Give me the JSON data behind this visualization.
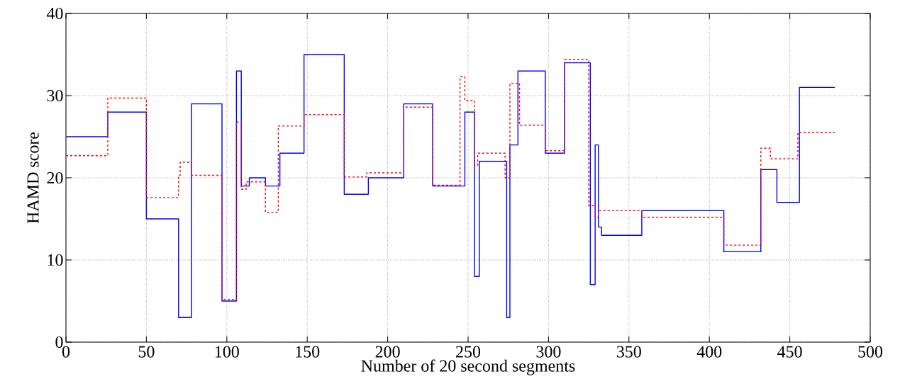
{
  "chart_data": {
    "type": "step",
    "xlabel": "Number of 20 second segments",
    "ylabel": "HAMD score",
    "xlim": [
      0,
      500
    ],
    "ylim": [
      0,
      40
    ],
    "xticks": [
      0,
      50,
      100,
      150,
      200,
      250,
      300,
      350,
      400,
      450,
      500
    ],
    "yticks": [
      0,
      10,
      20,
      30,
      40
    ],
    "grid": true,
    "marker": "none",
    "series": [
      {
        "color": "#0000ff",
        "line_style": "solid",
        "x": [
          0,
          26,
          50,
          70,
          78,
          97,
          106,
          109,
          114,
          124,
          133,
          148,
          173,
          188,
          210,
          228,
          248,
          254,
          257,
          274,
          276,
          281,
          298,
          310,
          326,
          329,
          331,
          333,
          358,
          409,
          432,
          442,
          456,
          478
        ],
        "values": [
          25,
          28,
          15,
          3,
          29,
          5,
          33,
          19,
          20,
          19,
          23,
          35,
          18,
          20,
          29,
          19,
          28,
          8,
          22,
          3,
          24,
          33,
          23,
          34,
          7,
          24,
          14,
          13,
          16,
          11,
          21,
          17,
          31,
          31
        ]
      },
      {
        "color": "#ff0000",
        "line_style": "dashed",
        "x": [
          0,
          26,
          50,
          70,
          71,
          78,
          97,
          106,
          109,
          112,
          124,
          132,
          148,
          173,
          187,
          210,
          228,
          245,
          248,
          254,
          256,
          273,
          276,
          282,
          298,
          310,
          325,
          329,
          331,
          358,
          409,
          432,
          438,
          455,
          478
        ],
        "values": [
          22.7,
          29.7,
          17.6,
          20.3,
          21.9,
          20.3,
          5.2,
          26.8,
          18.6,
          19.5,
          15.8,
          26.3,
          27.7,
          20.1,
          20.6,
          28.6,
          19.1,
          32.3,
          29.4,
          21.5,
          23,
          20,
          31.5,
          26.4,
          23.3,
          34.4,
          16.6,
          15.2,
          16,
          15.2,
          11.8,
          23.6,
          22.3,
          25.5,
          25.5
        ]
      }
    ]
  }
}
